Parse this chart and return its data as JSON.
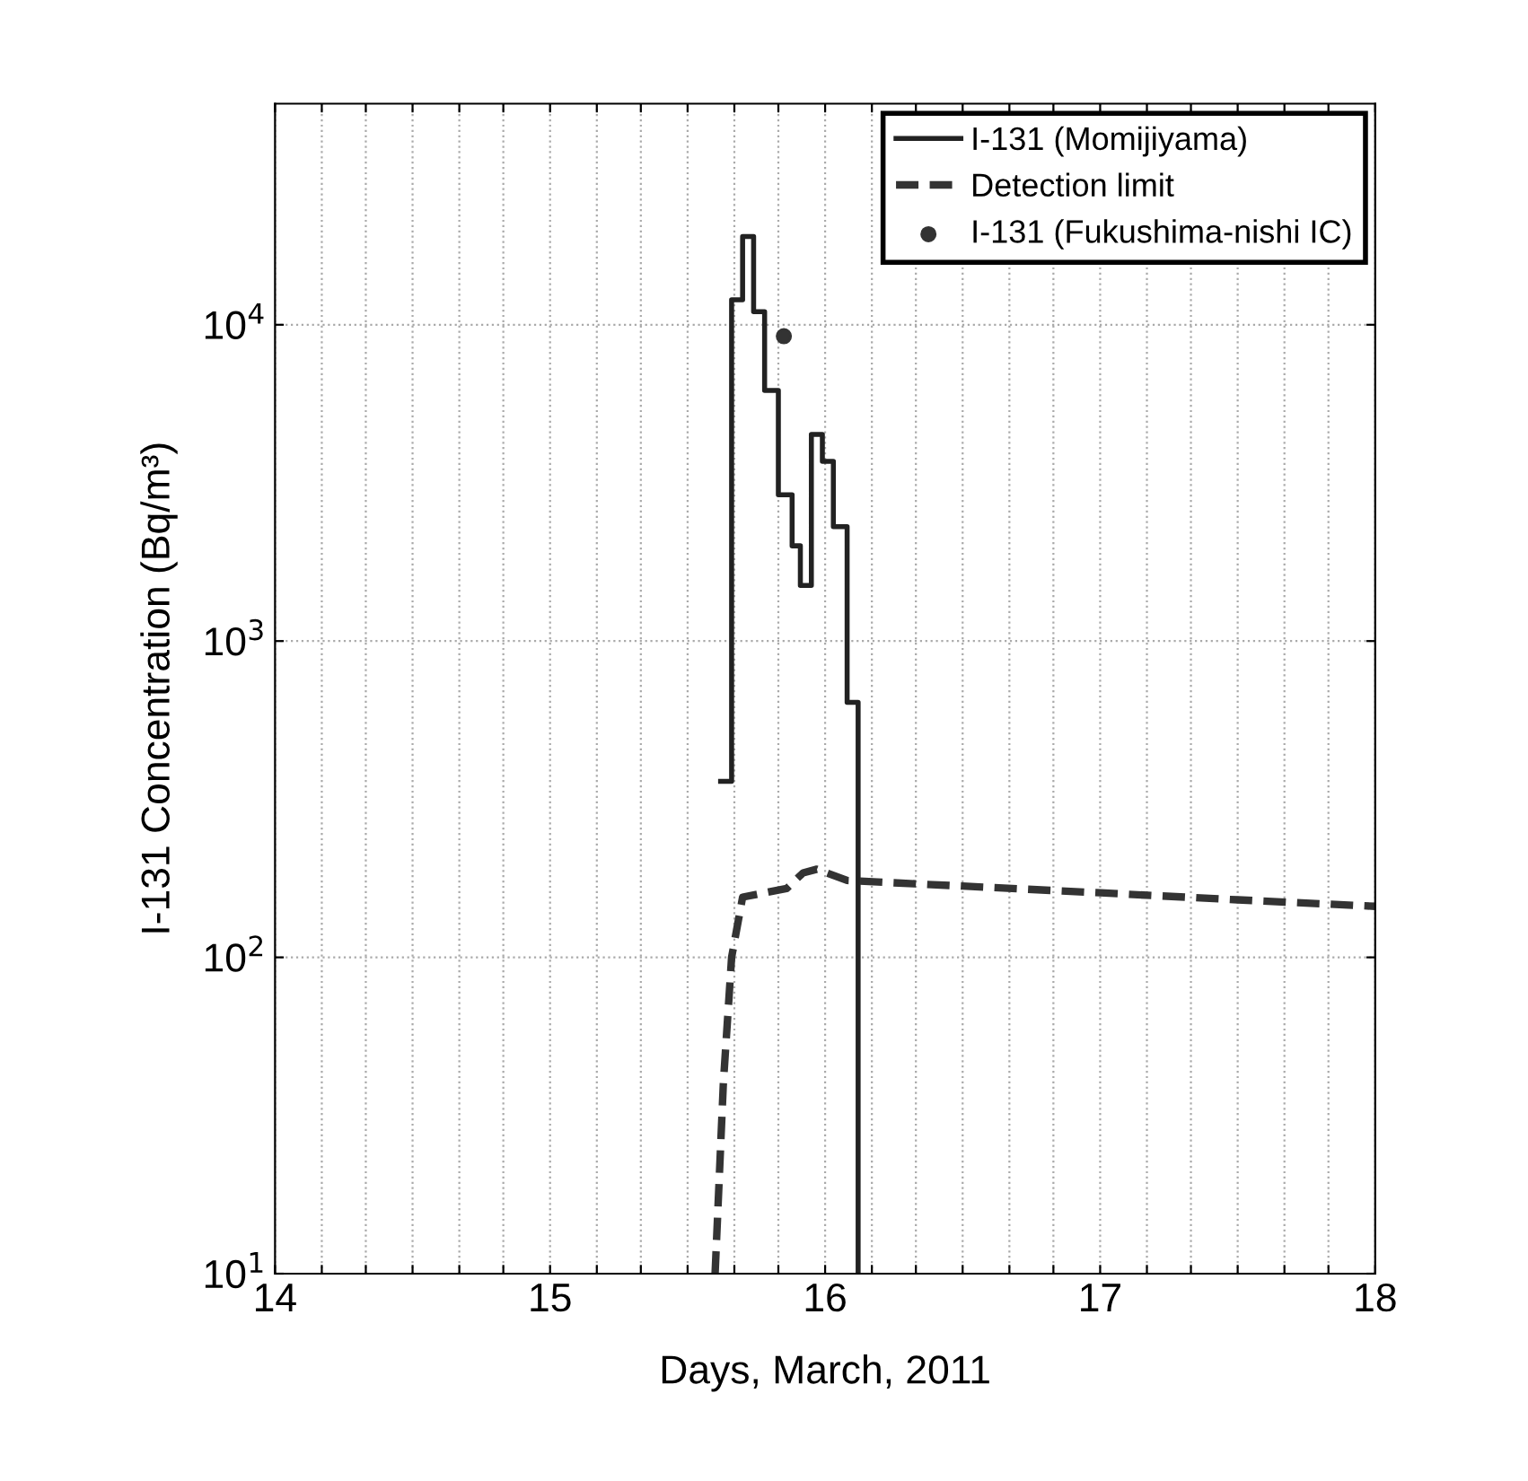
{
  "chart_data": {
    "type": "step",
    "xlabel": "Days, March, 2011",
    "ylabel": "I-131 Concentration (Bq/m³)",
    "log": "y",
    "grid": true,
    "legend": "top right",
    "xlim": [
      14,
      18
    ],
    "ylim": [
      10,
      50000
    ],
    "xticks": [
      14,
      {
        "value": 14.17,
        "label": null
      },
      {
        "value": 14.33,
        "label": null
      },
      {
        "value": 14.5,
        "label": null
      },
      {
        "value": 14.67,
        "label": null
      },
      {
        "value": 14.83,
        "label": null
      },
      15,
      {
        "value": 15.17,
        "label": null
      },
      {
        "value": 15.33,
        "label": null
      },
      {
        "value": 15.5,
        "label": null
      },
      {
        "value": 15.67,
        "label": null
      },
      {
        "value": 15.83,
        "label": null
      },
      16,
      {
        "value": 16.17,
        "label": null
      },
      {
        "value": 16.33,
        "label": null
      },
      {
        "value": 16.5,
        "label": null
      },
      {
        "value": 16.67,
        "label": null
      },
      {
        "value": 16.83,
        "label": null
      },
      17,
      {
        "value": 17.17,
        "label": null
      },
      {
        "value": 17.33,
        "label": null
      },
      {
        "value": 17.5,
        "label": null
      },
      {
        "value": 17.67,
        "label": null
      },
      {
        "value": 17.83,
        "label": null
      },
      18
    ],
    "yticks": [
      {
        "value": 10,
        "label": "10$^{1}$"
      },
      {
        "value": 100,
        "label": "10$^{2}$"
      },
      {
        "value": 1000,
        "label": "10$^{3}$"
      },
      {
        "value": 10000,
        "label": "10$^{4}$"
      }
    ],
    "series": [
      {
        "name": "I-131 (Momijiyama)",
        "color": "#222222",
        "line_style": "solid",
        "x": [
          15.62,
          15.66,
          15.7,
          15.74,
          15.78,
          15.83,
          15.88,
          15.91,
          15.95,
          15.99,
          16.03,
          16.08,
          16.12
        ],
        "values": [
          360,
          12000,
          19000,
          11000,
          6200,
          2900,
          2000,
          1500,
          4500,
          3700,
          2300,
          640,
          10
        ]
      },
      {
        "name": "Detection limit",
        "type": "line",
        "color": "#333333",
        "line_style": "dashed",
        "x": [
          15.6,
          15.63,
          15.66,
          15.7,
          15.78,
          15.86,
          15.92,
          15.97,
          16.08,
          16.5,
          17,
          17.5,
          18
        ],
        "values": [
          10,
          40,
          100,
          155,
          160,
          165,
          185,
          190,
          175,
          168,
          160,
          152,
          145
        ]
      },
      {
        "name": "I-131 (Fukushima-nishi IC)",
        "type": "scatter",
        "color": "#333333",
        "marker": "circle",
        "x": [
          15.85
        ],
        "values": [
          9200
        ]
      }
    ]
  }
}
